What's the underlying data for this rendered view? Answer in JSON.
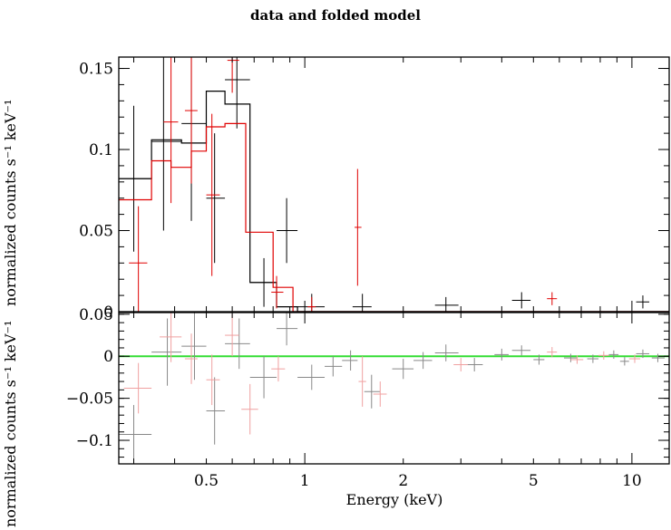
{
  "chart_data": {
    "title": "data and folded model",
    "xlabel": "Energy (keV)",
    "x_scale": "log",
    "xlim": [
      0.27,
      13
    ],
    "x_ticks": [
      {
        "value": 0.5,
        "label": "0.5"
      },
      {
        "value": 1,
        "label": "1"
      },
      {
        "value": 2,
        "label": "2"
      },
      {
        "value": 5,
        "label": "5"
      },
      {
        "value": 10,
        "label": "10"
      }
    ],
    "panels": [
      {
        "type": "step-errorbar",
        "ylabel": "normalized counts s⁻¹ keV⁻¹",
        "ylim": [
          0,
          0.157
        ],
        "y_ticks": [
          {
            "value": 0,
            "label": "0"
          },
          {
            "value": 0.05,
            "label": "0.05"
          },
          {
            "value": 0.1,
            "label": "0.1"
          },
          {
            "value": 0.15,
            "label": "0.15"
          }
        ],
        "series": [
          {
            "color": "#000000",
            "data": [
              {
                "x": 0.3,
                "y": 0.082,
                "xlo": 0.27,
                "xhi": 0.34,
                "yerr": 0.045
              },
              {
                "x": 0.37,
                "y": 0.105,
                "xlo": 0.34,
                "xhi": 0.42,
                "yerr": 0.055
              },
              {
                "x": 0.45,
                "y": 0.116,
                "xlo": 0.42,
                "xhi": 0.5,
                "yerr": 0.06
              },
              {
                "x": 0.53,
                "y": 0.07,
                "xlo": 0.5,
                "xhi": 0.57,
                "yerr": 0.04
              },
              {
                "x": 0.62,
                "y": 0.143,
                "xlo": 0.57,
                "xhi": 0.68,
                "yerr": 0.03
              },
              {
                "x": 0.75,
                "y": 0.018,
                "xlo": 0.68,
                "xhi": 0.82,
                "yerr": 0.015
              },
              {
                "x": 0.88,
                "y": 0.05,
                "xlo": 0.82,
                "xhi": 0.95,
                "yerr": 0.02
              },
              {
                "x": 1.05,
                "y": 0.003,
                "xlo": 0.95,
                "xhi": 1.15,
                "yerr": 0.008
              },
              {
                "x": 1.5,
                "y": 0.003,
                "xlo": 1.4,
                "xhi": 1.6,
                "yerr": 0.008
              },
              {
                "x": 2.7,
                "y": 0.004,
                "xlo": 2.5,
                "xhi": 2.95,
                "yerr": 0.005
              },
              {
                "x": 4.6,
                "y": 0.007,
                "xlo": 4.3,
                "xhi": 4.9,
                "yerr": 0.005
              },
              {
                "x": 10.8,
                "y": 0.006,
                "xlo": 10.3,
                "xhi": 11.3,
                "yerr": 0.004
              }
            ],
            "model": [
              {
                "x0": 0.27,
                "x1": 0.34,
                "y": 0.082
              },
              {
                "x0": 0.34,
                "x1": 0.42,
                "y": 0.106
              },
              {
                "x0": 0.42,
                "x1": 0.5,
                "y": 0.104
              },
              {
                "x0": 0.5,
                "x1": 0.57,
                "y": 0.136
              },
              {
                "x0": 0.57,
                "x1": 0.68,
                "y": 0.128
              },
              {
                "x0": 0.68,
                "x1": 0.82,
                "y": 0.018
              },
              {
                "x0": 0.82,
                "x1": 0.95,
                "y": 0.003
              },
              {
                "x0": 0.95,
                "x1": 13,
                "y": 0.0
              }
            ]
          },
          {
            "color": "#e00000",
            "data": [
              {
                "x": 0.31,
                "y": 0.03,
                "xlo": 0.29,
                "xhi": 0.33,
                "yerr": 0.035
              },
              {
                "x": 0.39,
                "y": 0.117,
                "xlo": 0.37,
                "xhi": 0.41,
                "yerr": 0.05
              },
              {
                "x": 0.45,
                "y": 0.124,
                "xlo": 0.43,
                "xhi": 0.47,
                "yerr": 0.045
              },
              {
                "x": 0.52,
                "y": 0.072,
                "xlo": 0.5,
                "xhi": 0.55,
                "yerr": 0.05
              },
              {
                "x": 0.6,
                "y": 0.155,
                "xlo": 0.58,
                "xhi": 0.63,
                "yerr": 0.02
              },
              {
                "x": 0.82,
                "y": 0.012,
                "xlo": 0.79,
                "xhi": 0.86,
                "yerr": 0.01
              },
              {
                "x": 1.05,
                "y": 0.003,
                "xlo": 1.02,
                "xhi": 1.08,
                "yerr": 0.006
              },
              {
                "x": 1.45,
                "y": 0.052,
                "xlo": 1.42,
                "xhi": 1.49,
                "yerr": 0.036
              },
              {
                "x": 5.7,
                "y": 0.008,
                "xlo": 5.5,
                "xhi": 5.9,
                "yerr": 0.004
              }
            ],
            "model": [
              {
                "x0": 0.27,
                "x1": 0.34,
                "y": 0.069
              },
              {
                "x0": 0.34,
                "x1": 0.39,
                "y": 0.093
              },
              {
                "x0": 0.39,
                "x1": 0.45,
                "y": 0.089
              },
              {
                "x0": 0.45,
                "x1": 0.5,
                "y": 0.099
              },
              {
                "x0": 0.5,
                "x1": 0.57,
                "y": 0.114
              },
              {
                "x0": 0.57,
                "x1": 0.66,
                "y": 0.116
              },
              {
                "x0": 0.66,
                "x1": 0.8,
                "y": 0.049
              },
              {
                "x0": 0.8,
                "x1": 0.92,
                "y": 0.015
              },
              {
                "x0": 0.92,
                "x1": 13,
                "y": 0.0
              }
            ]
          }
        ]
      },
      {
        "type": "residual-errorbar",
        "ylabel": "normalized counts s⁻¹ keV⁻¹",
        "ylim": [
          -0.128,
          0.052
        ],
        "y_ticks": [
          {
            "value": -0.1,
            "label": "−0.1"
          },
          {
            "value": -0.05,
            "label": "−0.05"
          },
          {
            "value": 0,
            "label": "0"
          },
          {
            "value": 0.05,
            "label": "0.05"
          }
        ],
        "zero_line_color": "#33dd33",
        "series": [
          {
            "color": "#888888",
            "data": [
              {
                "x": 0.3,
                "y": -0.093,
                "xlo": 0.27,
                "xhi": 0.34,
                "yerr": 0.035
              },
              {
                "x": 0.38,
                "y": 0.005,
                "xlo": 0.34,
                "xhi": 0.42,
                "yerr": 0.04
              },
              {
                "x": 0.46,
                "y": 0.012,
                "xlo": 0.42,
                "xhi": 0.5,
                "yerr": 0.04
              },
              {
                "x": 0.53,
                "y": -0.065,
                "xlo": 0.5,
                "xhi": 0.57,
                "yerr": 0.04
              },
              {
                "x": 0.63,
                "y": 0.015,
                "xlo": 0.57,
                "xhi": 0.68,
                "yerr": 0.03
              },
              {
                "x": 0.75,
                "y": -0.025,
                "xlo": 0.68,
                "xhi": 0.82,
                "yerr": 0.025
              },
              {
                "x": 0.88,
                "y": 0.033,
                "xlo": 0.82,
                "xhi": 0.95,
                "yerr": 0.02
              },
              {
                "x": 1.05,
                "y": -0.025,
                "xlo": 0.95,
                "xhi": 1.15,
                "yerr": 0.015
              },
              {
                "x": 1.22,
                "y": -0.012,
                "xlo": 1.15,
                "xhi": 1.3,
                "yerr": 0.012
              },
              {
                "x": 1.38,
                "y": -0.005,
                "xlo": 1.3,
                "xhi": 1.45,
                "yerr": 0.012
              },
              {
                "x": 1.6,
                "y": -0.042,
                "xlo": 1.52,
                "xhi": 1.7,
                "yerr": 0.02
              },
              {
                "x": 2.0,
                "y": -0.015,
                "xlo": 1.85,
                "xhi": 2.15,
                "yerr": 0.012
              },
              {
                "x": 2.3,
                "y": -0.005,
                "xlo": 2.15,
                "xhi": 2.45,
                "yerr": 0.01
              },
              {
                "x": 2.7,
                "y": 0.004,
                "xlo": 2.5,
                "xhi": 2.95,
                "yerr": 0.01
              },
              {
                "x": 3.3,
                "y": -0.01,
                "xlo": 3.1,
                "xhi": 3.5,
                "yerr": 0.008
              },
              {
                "x": 4.0,
                "y": 0.002,
                "xlo": 3.8,
                "xhi": 4.2,
                "yerr": 0.007
              },
              {
                "x": 4.6,
                "y": 0.007,
                "xlo": 4.3,
                "xhi": 4.9,
                "yerr": 0.006
              },
              {
                "x": 5.2,
                "y": -0.004,
                "xlo": 5.0,
                "xhi": 5.4,
                "yerr": 0.006
              },
              {
                "x": 6.5,
                "y": -0.002,
                "xlo": 6.2,
                "xhi": 6.8,
                "yerr": 0.005
              },
              {
                "x": 7.6,
                "y": -0.003,
                "xlo": 7.3,
                "xhi": 7.9,
                "yerr": 0.005
              },
              {
                "x": 8.8,
                "y": 0.002,
                "xlo": 8.5,
                "xhi": 9.1,
                "yerr": 0.005
              },
              {
                "x": 9.5,
                "y": -0.006,
                "xlo": 9.2,
                "xhi": 9.8,
                "yerr": 0.005
              },
              {
                "x": 10.8,
                "y": 0.003,
                "xlo": 10.3,
                "xhi": 11.3,
                "yerr": 0.005
              },
              {
                "x": 12.0,
                "y": -0.002,
                "xlo": 11.5,
                "xhi": 12.6,
                "yerr": 0.005
              }
            ]
          },
          {
            "color": "#f0a0a0",
            "data": [
              {
                "x": 0.31,
                "y": -0.038,
                "xlo": 0.28,
                "xhi": 0.34,
                "yerr": 0.03
              },
              {
                "x": 0.39,
                "y": 0.023,
                "xlo": 0.36,
                "xhi": 0.42,
                "yerr": 0.03
              },
              {
                "x": 0.45,
                "y": -0.003,
                "xlo": 0.43,
                "xhi": 0.47,
                "yerr": 0.03
              },
              {
                "x": 0.52,
                "y": -0.028,
                "xlo": 0.5,
                "xhi": 0.55,
                "yerr": 0.03
              },
              {
                "x": 0.6,
                "y": 0.025,
                "xlo": 0.57,
                "xhi": 0.63,
                "yerr": 0.025
              },
              {
                "x": 0.68,
                "y": -0.063,
                "xlo": 0.64,
                "xhi": 0.72,
                "yerr": 0.03
              },
              {
                "x": 0.83,
                "y": -0.015,
                "xlo": 0.79,
                "xhi": 0.87,
                "yerr": 0.015
              },
              {
                "x": 1.5,
                "y": -0.03,
                "xlo": 1.46,
                "xhi": 1.54,
                "yerr": 0.03
              },
              {
                "x": 1.7,
                "y": -0.045,
                "xlo": 1.62,
                "xhi": 1.78,
                "yerr": 0.015
              },
              {
                "x": 3.0,
                "y": -0.01,
                "xlo": 2.85,
                "xhi": 3.15,
                "yerr": 0.008
              },
              {
                "x": 5.7,
                "y": 0.005,
                "xlo": 5.5,
                "xhi": 5.9,
                "yerr": 0.006
              },
              {
                "x": 6.8,
                "y": -0.004,
                "xlo": 6.5,
                "xhi": 7.1,
                "yerr": 0.005
              },
              {
                "x": 8.2,
                "y": 0.001,
                "xlo": 7.9,
                "xhi": 8.5,
                "yerr": 0.005
              },
              {
                "x": 10.2,
                "y": -0.003,
                "xlo": 9.8,
                "xhi": 10.6,
                "yerr": 0.005
              }
            ]
          }
        ]
      }
    ]
  }
}
